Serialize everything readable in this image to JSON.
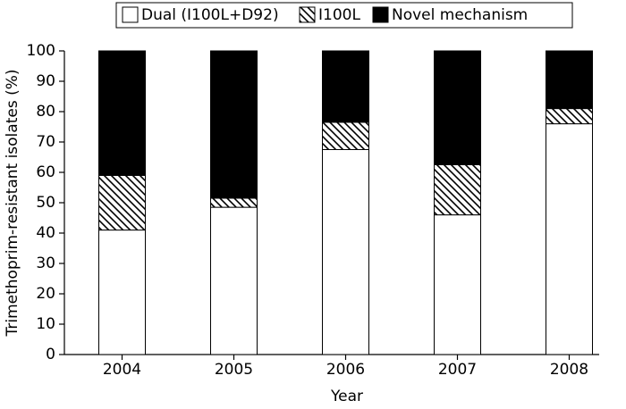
{
  "chart_data": {
    "type": "stacked_bar",
    "x_label": "Year",
    "y_label": "Trimethoprim-resistant isolates (%)",
    "categories": [
      "2004",
      "2005",
      "2006",
      "2007",
      "2008"
    ],
    "series": [
      {
        "name": "Dual (I100L+D92)",
        "color": "#ffffff",
        "hatch": false,
        "values": [
          41,
          48.5,
          67.5,
          46,
          76
        ]
      },
      {
        "name": "I100L",
        "color": "#ffffff",
        "hatch": true,
        "values": [
          18,
          3,
          9,
          16.5,
          5
        ]
      },
      {
        "name": "Novel mechanism",
        "color": "#000000",
        "hatch": false,
        "values": [
          41,
          48.5,
          23.5,
          37.5,
          19
        ]
      }
    ],
    "ylim": [
      0,
      100
    ],
    "yticks": [
      0,
      10,
      20,
      30,
      40,
      50,
      60,
      70,
      80,
      90,
      100
    ],
    "legend": "top"
  }
}
